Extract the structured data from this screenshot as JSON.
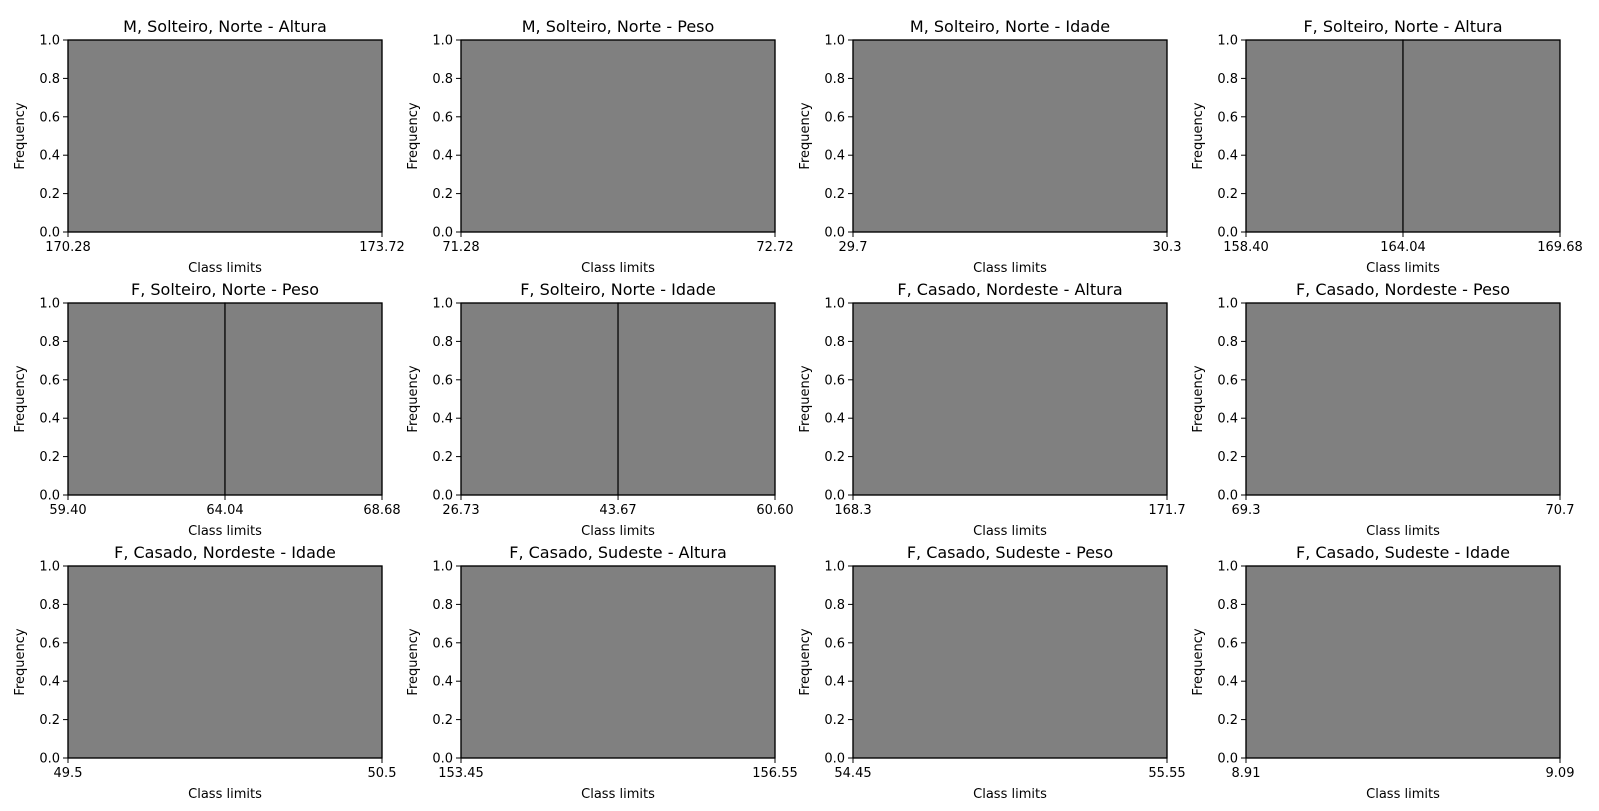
{
  "figure": {
    "colors": {
      "bar_fill": "#808080",
      "bar_edge": "#000000",
      "axes": "#000000",
      "background": "#ffffff"
    }
  },
  "chart_data": [
    {
      "type": "bar",
      "title": "M, Solteiro, Norte - Altura",
      "xlabel": "Class limits",
      "ylabel": "Frequency",
      "bins": [
        170.28,
        173.72
      ],
      "counts": [
        1
      ],
      "xticks": [
        "170.28",
        "173.72"
      ],
      "ylim": [
        0,
        1.0
      ],
      "yticks": [
        "0.0",
        "0.2",
        "0.4",
        "0.6",
        "0.8",
        "1.0"
      ],
      "grid": false
    },
    {
      "type": "bar",
      "title": "M, Solteiro, Norte - Peso",
      "xlabel": "Class limits",
      "ylabel": "Frequency",
      "bins": [
        71.28,
        72.72
      ],
      "counts": [
        1
      ],
      "xticks": [
        "71.28",
        "72.72"
      ],
      "ylim": [
        0,
        1.0
      ],
      "yticks": [
        "0.0",
        "0.2",
        "0.4",
        "0.6",
        "0.8",
        "1.0"
      ],
      "grid": false
    },
    {
      "type": "bar",
      "title": "M, Solteiro, Norte - Idade",
      "xlabel": "Class limits",
      "ylabel": "Frequency",
      "bins": [
        29.7,
        30.3
      ],
      "counts": [
        1
      ],
      "xticks": [
        "29.7",
        "30.3"
      ],
      "ylim": [
        0,
        1.0
      ],
      "yticks": [
        "0.0",
        "0.2",
        "0.4",
        "0.6",
        "0.8",
        "1.0"
      ],
      "grid": false
    },
    {
      "type": "bar",
      "title": "F, Solteiro, Norte - Altura",
      "xlabel": "Class limits",
      "ylabel": "Frequency",
      "bins": [
        158.4,
        164.04,
        169.68
      ],
      "counts": [
        1,
        1
      ],
      "xticks": [
        "158.40",
        "164.04",
        "169.68"
      ],
      "ylim": [
        0,
        1.0
      ],
      "yticks": [
        "0.0",
        "0.2",
        "0.4",
        "0.6",
        "0.8",
        "1.0"
      ],
      "grid": false
    },
    {
      "type": "bar",
      "title": "F, Solteiro, Norte - Peso",
      "xlabel": "Class limits",
      "ylabel": "Frequency",
      "bins": [
        59.4,
        64.04,
        68.68
      ],
      "counts": [
        1,
        1
      ],
      "xticks": [
        "59.40",
        "64.04",
        "68.68"
      ],
      "ylim": [
        0,
        1.0
      ],
      "yticks": [
        "0.0",
        "0.2",
        "0.4",
        "0.6",
        "0.8",
        "1.0"
      ],
      "grid": false
    },
    {
      "type": "bar",
      "title": "F, Solteiro, Norte - Idade",
      "xlabel": "Class limits",
      "ylabel": "Frequency",
      "bins": [
        26.73,
        43.67,
        60.6
      ],
      "counts": [
        1,
        1
      ],
      "xticks": [
        "26.73",
        "43.67",
        "60.60"
      ],
      "ylim": [
        0,
        1.0
      ],
      "yticks": [
        "0.0",
        "0.2",
        "0.4",
        "0.6",
        "0.8",
        "1.0"
      ],
      "grid": false
    },
    {
      "type": "bar",
      "title": "F, Casado, Nordeste - Altura",
      "xlabel": "Class limits",
      "ylabel": "Frequency",
      "bins": [
        168.3,
        171.7
      ],
      "counts": [
        1
      ],
      "xticks": [
        "168.3",
        "171.7"
      ],
      "ylim": [
        0,
        1.0
      ],
      "yticks": [
        "0.0",
        "0.2",
        "0.4",
        "0.6",
        "0.8",
        "1.0"
      ],
      "grid": false
    },
    {
      "type": "bar",
      "title": "F, Casado, Nordeste - Peso",
      "xlabel": "Class limits",
      "ylabel": "Frequency",
      "bins": [
        69.3,
        70.7
      ],
      "counts": [
        1
      ],
      "xticks": [
        "69.3",
        "70.7"
      ],
      "ylim": [
        0,
        1.0
      ],
      "yticks": [
        "0.0",
        "0.2",
        "0.4",
        "0.6",
        "0.8",
        "1.0"
      ],
      "grid": false
    },
    {
      "type": "bar",
      "title": "F, Casado, Nordeste - Idade",
      "xlabel": "Class limits",
      "ylabel": "Frequency",
      "bins": [
        49.5,
        50.5
      ],
      "counts": [
        1
      ],
      "xticks": [
        "49.5",
        "50.5"
      ],
      "ylim": [
        0,
        1.0
      ],
      "yticks": [
        "0.0",
        "0.2",
        "0.4",
        "0.6",
        "0.8",
        "1.0"
      ],
      "grid": false
    },
    {
      "type": "bar",
      "title": "F, Casado, Sudeste - Altura",
      "xlabel": "Class limits",
      "ylabel": "Frequency",
      "bins": [
        153.45,
        156.55
      ],
      "counts": [
        1
      ],
      "xticks": [
        "153.45",
        "156.55"
      ],
      "ylim": [
        0,
        1.0
      ],
      "yticks": [
        "0.0",
        "0.2",
        "0.4",
        "0.6",
        "0.8",
        "1.0"
      ],
      "grid": false
    },
    {
      "type": "bar",
      "title": "F, Casado, Sudeste - Peso",
      "xlabel": "Class limits",
      "ylabel": "Frequency",
      "bins": [
        54.45,
        55.55
      ],
      "counts": [
        1
      ],
      "xticks": [
        "54.45",
        "55.55"
      ],
      "ylim": [
        0,
        1.0
      ],
      "yticks": [
        "0.0",
        "0.2",
        "0.4",
        "0.6",
        "0.8",
        "1.0"
      ],
      "grid": false
    },
    {
      "type": "bar",
      "title": "F, Casado, Sudeste - Idade",
      "xlabel": "Class limits",
      "ylabel": "Frequency",
      "bins": [
        8.91,
        9.09
      ],
      "counts": [
        1
      ],
      "xticks": [
        "8.91",
        "9.09"
      ],
      "ylim": [
        0,
        1.0
      ],
      "yticks": [
        "0.0",
        "0.2",
        "0.4",
        "0.6",
        "0.8",
        "1.0"
      ],
      "grid": false
    }
  ]
}
